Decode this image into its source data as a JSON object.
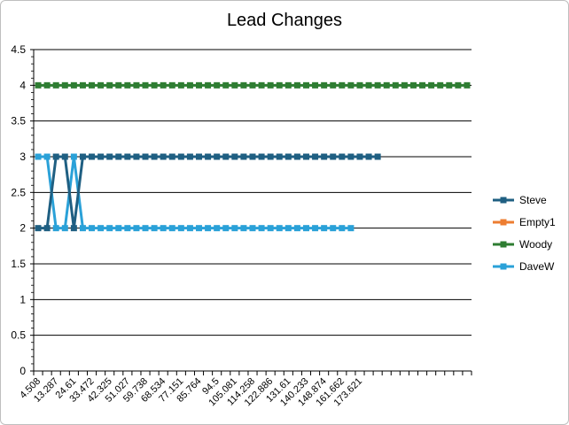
{
  "chart_data": {
    "type": "line",
    "title": "Lead Changes",
    "xlabel": "",
    "ylabel": "",
    "ylim": [
      0,
      4.5
    ],
    "yticks": [
      "0",
      "0.5",
      "1",
      "1.5",
      "2",
      "2.5",
      "3",
      "3.5",
      "4",
      "4.5"
    ],
    "grid": true,
    "legend_position": "right",
    "x_tick_labels": [
      "4.508",
      "13.287",
      "24.61",
      "33.472",
      "42.325",
      "51.027",
      "59.738",
      "68.534",
      "77.151",
      "85.764",
      "94.5",
      "105.081",
      "114.258",
      "122.886",
      "131.61",
      "140.233",
      "148.874",
      "161.662",
      "173.621"
    ],
    "x_category_count": 49,
    "series": [
      {
        "name": "Steve",
        "color": "#1f5f82",
        "values": [
          2,
          2,
          3,
          3,
          2,
          3,
          3,
          3,
          3,
          3,
          3,
          3,
          3,
          3,
          3,
          3,
          3,
          3,
          3,
          3,
          3,
          3,
          3,
          3,
          3,
          3,
          3,
          3,
          3,
          3,
          3,
          3,
          3,
          3,
          3,
          3,
          3,
          3,
          3
        ]
      },
      {
        "name": "Empty1",
        "color": "#ed7d31",
        "values": []
      },
      {
        "name": "Woody",
        "color": "#2e7d32",
        "values": [
          4,
          4,
          4,
          4,
          4,
          4,
          4,
          4,
          4,
          4,
          4,
          4,
          4,
          4,
          4,
          4,
          4,
          4,
          4,
          4,
          4,
          4,
          4,
          4,
          4,
          4,
          4,
          4,
          4,
          4,
          4,
          4,
          4,
          4,
          4,
          4,
          4,
          4,
          4,
          4,
          4,
          4,
          4,
          4,
          4,
          4,
          4,
          4,
          4
        ]
      },
      {
        "name": "DaveW",
        "color": "#2aa1d8",
        "values": [
          3,
          3,
          2,
          2,
          3,
          2,
          2,
          2,
          2,
          2,
          2,
          2,
          2,
          2,
          2,
          2,
          2,
          2,
          2,
          2,
          2,
          2,
          2,
          2,
          2,
          2,
          2,
          2,
          2,
          2,
          2,
          2,
          2,
          2,
          2,
          2
        ]
      }
    ]
  }
}
